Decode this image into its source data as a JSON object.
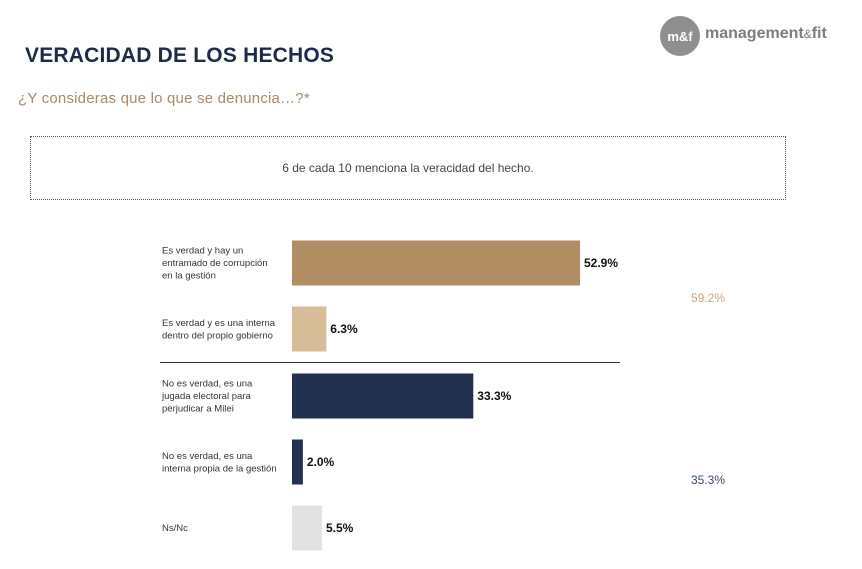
{
  "header": {
    "title": "VERACIDAD DE LOS HECHOS",
    "subtitle": "¿Y consideras que lo que se denuncia…?*"
  },
  "logo": {
    "mark": "m&f",
    "name": "management",
    "amp": "&",
    "suffix": "fit"
  },
  "note": "6 de cada 10 menciona la veracidad del hecho.",
  "colors": {
    "title": "#1e2a4a",
    "subtitle": "#a98c63",
    "gold": "#b08d62",
    "light_gold": "#d7bc98",
    "navy": "#233150",
    "grey": "#e2e2e2",
    "logo_grey": "#8f8f8f"
  },
  "chart_data": {
    "type": "bar",
    "orientation": "horizontal",
    "xlim": [
      0,
      100
    ],
    "categories": [
      [
        "Es verdad y hay un",
        "entramado de corrupción",
        "en la gestión"
      ],
      [
        "Es verdad y es una interna",
        "dentro del propio gobierno"
      ],
      [
        "No es verdad, es una",
        "jugada electoral para",
        "perjudicar a Milei"
      ],
      [
        "No es verdad, es una",
        "interna propia de la gestión"
      ],
      [
        "Ns/Nc"
      ]
    ],
    "values": [
      52.9,
      6.3,
      33.3,
      2.0,
      5.5
    ],
    "value_labels": [
      "52.9%",
      "6.3%",
      "33.3%",
      "2.0%",
      "5.5%"
    ],
    "bar_colors": [
      "#b08d62",
      "#d7bc98",
      "#233150",
      "#233150",
      "#e2e2e2"
    ],
    "groups": [
      {
        "label": "59.2%",
        "value": 59.2,
        "color": "#c9a87c",
        "bars": [
          0,
          1
        ]
      },
      {
        "label": "35.3%",
        "value": 35.3,
        "color": "#3a4a70",
        "bars": [
          2,
          3
        ]
      }
    ],
    "divider_after": 1
  }
}
